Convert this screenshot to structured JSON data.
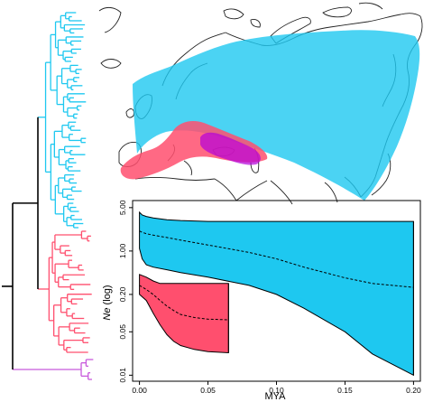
{
  "colors": {
    "lineage_blue": "#1ec8f0",
    "lineage_red": "#ff4f6e",
    "lineage_purple": "#c85adc",
    "lineage_magenta": "#b400dc",
    "stem": "#000000",
    "map_outline": "#222222"
  },
  "tree": {
    "blue_tips": 54,
    "red_tips": 26,
    "purple_tips": 4
  },
  "chart_data": {
    "type": "area",
    "title": "",
    "xlabel": "MYA",
    "ylabel_italic": "Ne",
    "ylabel_rest": " (log)",
    "xlim": [
      -0.005,
      0.205
    ],
    "ylim": [
      0.008,
      6.5
    ],
    "yscale": "log",
    "grid": false,
    "legend": "none",
    "xticks": [
      0.0,
      0.05,
      0.1,
      0.15,
      0.2
    ],
    "xtick_labels": [
      "0.00",
      "0.05",
      "0.10",
      "0.15",
      "0.20"
    ],
    "yticks": [
      0.01,
      0.05,
      0.2,
      1.0,
      5.0
    ],
    "ytick_labels": [
      "0.01",
      "0.05",
      "0.20",
      "1.00",
      "5.00"
    ],
    "series": [
      {
        "color": "#1ec8f0",
        "x": [
          0.0,
          0.002,
          0.005,
          0.01,
          0.02,
          0.03,
          0.05,
          0.08,
          0.1,
          0.12,
          0.15,
          0.17,
          0.2
        ],
        "upper": [
          4.2,
          3.8,
          3.6,
          3.4,
          3.2,
          3.1,
          3.0,
          3.0,
          3.0,
          3.0,
          3.0,
          3.0,
          3.0
        ],
        "median": [
          2.1,
          2.0,
          1.9,
          1.8,
          1.65,
          1.5,
          1.25,
          0.95,
          0.75,
          0.55,
          0.37,
          0.3,
          0.26
        ],
        "lower": [
          1.1,
          0.75,
          0.6,
          0.55,
          0.5,
          0.45,
          0.38,
          0.28,
          0.2,
          0.12,
          0.05,
          0.022,
          0.01
        ]
      },
      {
        "color": "#ff4f6e",
        "x": [
          0.0,
          0.005,
          0.01,
          0.015,
          0.02,
          0.025,
          0.03,
          0.04,
          0.05,
          0.065
        ],
        "upper": [
          0.42,
          0.38,
          0.33,
          0.3,
          0.3,
          0.3,
          0.3,
          0.3,
          0.3,
          0.3
        ],
        "median": [
          0.28,
          0.24,
          0.2,
          0.16,
          0.13,
          0.11,
          0.095,
          0.085,
          0.08,
          0.078
        ],
        "lower": [
          0.2,
          0.16,
          0.1,
          0.065,
          0.045,
          0.035,
          0.03,
          0.026,
          0.024,
          0.023
        ]
      }
    ]
  }
}
